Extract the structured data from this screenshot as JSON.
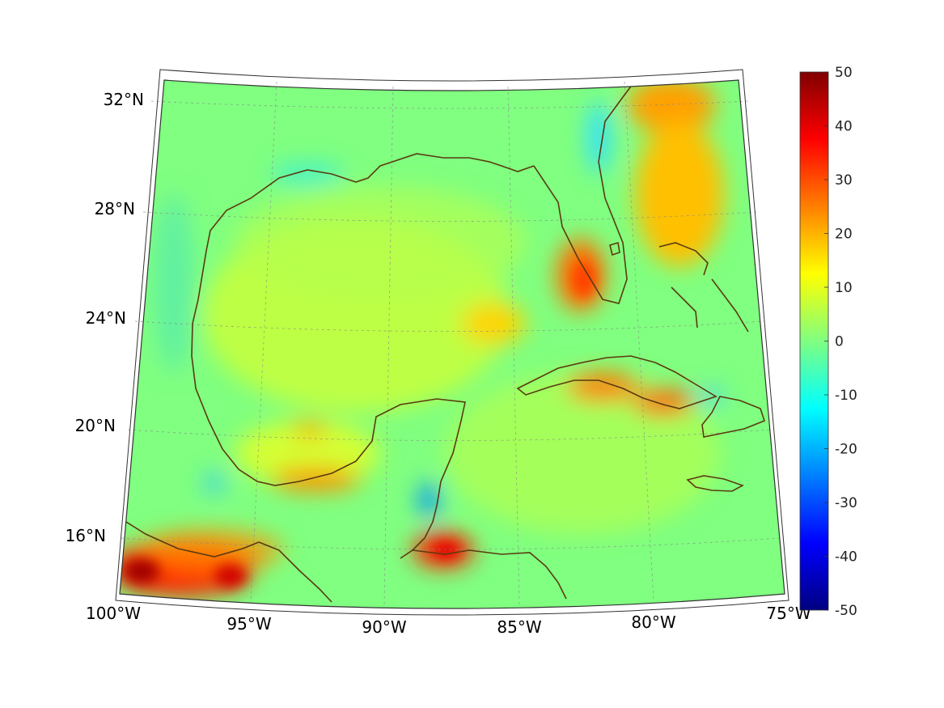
{
  "chart_data": {
    "type": "heatmap",
    "title": "",
    "projection": "conic",
    "region": "Gulf of Mexico and Caribbean",
    "lon_range": [
      -100,
      -75
    ],
    "lat_range": [
      14,
      33
    ],
    "longitude_ticks": [
      "100°W",
      "95°W",
      "90°W",
      "85°W",
      "80°W",
      "75°W"
    ],
    "latitude_ticks": [
      "16°N",
      "20°N",
      "24°N",
      "28°N",
      "32°N"
    ],
    "grid": true,
    "colorbar": {
      "location": "right",
      "colormap": "jet",
      "range": [
        -50,
        50
      ],
      "ticks": [
        "50",
        "40",
        "30",
        "20",
        "10",
        "0",
        "-10",
        "-20",
        "-30",
        "-40",
        "-50"
      ]
    },
    "background_value": 5,
    "ocean_value_range": [
      3,
      12
    ],
    "notable_features": [
      {
        "area": "southwest Florida coast",
        "value": 27
      },
      {
        "area": "Atlantic off Georgia and Carolinas",
        "value": 20
      },
      {
        "area": "southern Mexico near 15N 98W",
        "value": 45
      },
      {
        "area": "Honduras north coast",
        "value": 38
      },
      {
        "area": "central Cuba",
        "value": 28
      },
      {
        "area": "eastern Cuba",
        "value": 30
      },
      {
        "area": "Yucatan east coast",
        "value": -25
      },
      {
        "area": "northeast Florida coast",
        "value": -12
      },
      {
        "area": "Louisiana coast",
        "value": -5
      }
    ],
    "colors": {
      "coastline": "#5a3a10",
      "frame": "#222222",
      "grid": "#888888"
    }
  }
}
